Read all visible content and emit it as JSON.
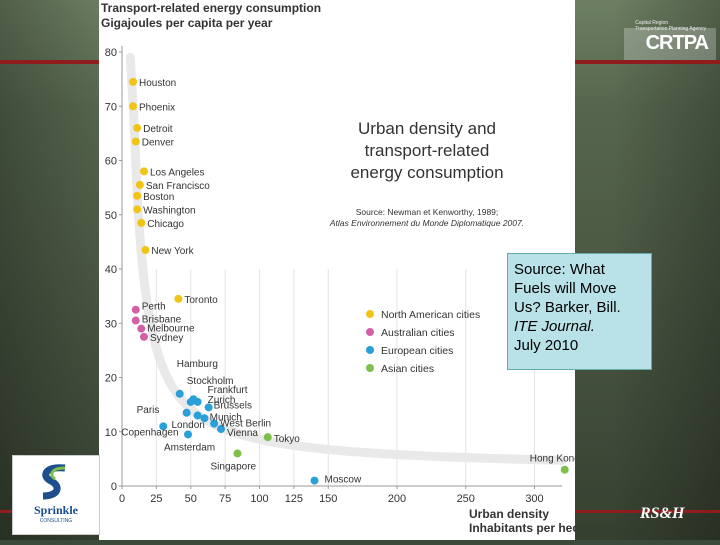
{
  "source_box": {
    "lines": [
      "Source: What",
      "Fuels will Move",
      "Us? Barker, Bill.",
      "ITE Journal.",
      "July 2010"
    ]
  },
  "logos": {
    "left_word": "Sprinkle",
    "left_sub": "CONSULTING",
    "right_word": "CRTPA",
    "bottom_right": "RS&H"
  },
  "chart_data": {
    "type": "scatter",
    "title": "Urban density and transport-related energy consumption",
    "title_lines": [
      "Urban density and",
      "transport-related",
      "energy consumption"
    ],
    "source_lines": [
      "Source: Newman et Kenworthy, 1989;",
      "Atlas Environnement du Monde Diplomatique 2007."
    ],
    "ylabel_lines": [
      "Transport-related energy consumption",
      "Gigajoules per capita per year"
    ],
    "xlabel_lines": [
      "Urban density",
      "Inhabitants per hectare"
    ],
    "xlim": [
      0,
      320
    ],
    "ylim": [
      0,
      80
    ],
    "x_ticks": [
      0,
      25,
      50,
      75,
      100,
      125,
      150,
      200,
      250,
      300
    ],
    "y_ticks": [
      0,
      10,
      20,
      30,
      40,
      50,
      60,
      70,
      80
    ],
    "grid": true,
    "legend_position": "right",
    "legend": [
      {
        "name": "North American cities",
        "color": "#f2c417"
      },
      {
        "name": "Australian cities",
        "color": "#d160a6"
      },
      {
        "name": "European cities",
        "color": "#2aa0d8"
      },
      {
        "name": "Asian cities",
        "color": "#7cc04a"
      }
    ],
    "series": [
      {
        "name": "North American cities",
        "color": "#f2c417",
        "points": [
          {
            "label": "Houston",
            "x": 8,
            "y": 74.5
          },
          {
            "label": "Phoenix",
            "x": 8,
            "y": 70
          },
          {
            "label": "Detroit",
            "x": 11,
            "y": 66
          },
          {
            "label": "Denver",
            "x": 10,
            "y": 63.5
          },
          {
            "label": "Los Angeles",
            "x": 16,
            "y": 58
          },
          {
            "label": "San Francisco",
            "x": 13,
            "y": 55.5
          },
          {
            "label": "Boston",
            "x": 11,
            "y": 53.5
          },
          {
            "label": "Washington",
            "x": 11,
            "y": 51
          },
          {
            "label": "Chicago",
            "x": 14,
            "y": 48.5
          },
          {
            "label": "New York",
            "x": 17,
            "y": 43.5
          },
          {
            "label": "Toronto",
            "x": 41,
            "y": 34.5
          }
        ]
      },
      {
        "name": "Australian cities",
        "color": "#d160a6",
        "points": [
          {
            "label": "Perth",
            "x": 10,
            "y": 32.5
          },
          {
            "label": "Brisbane",
            "x": 10,
            "y": 30.5
          },
          {
            "label": "Melbourne",
            "x": 14,
            "y": 29
          },
          {
            "label": "Sydney",
            "x": 16,
            "y": 27.5
          }
        ]
      },
      {
        "name": "European cities",
        "color": "#2aa0d8",
        "points": [
          {
            "label": "Hamburg",
            "x": 42,
            "y": 17
          },
          {
            "label": "Stockholm",
            "x": 50,
            "y": 15.5
          },
          {
            "label": "Frankfurt",
            "x": 52,
            "y": 16
          },
          {
            "label": "Zurich",
            "x": 55,
            "y": 15.5
          },
          {
            "label": "Brussels",
            "x": 63,
            "y": 14.5
          },
          {
            "label": "Paris",
            "x": 47,
            "y": 13.5
          },
          {
            "label": "Munich",
            "x": 55,
            "y": 13
          },
          {
            "label": "London",
            "x": 60,
            "y": 12.5
          },
          {
            "label": "West Berlin",
            "x": 67,
            "y": 11.5
          },
          {
            "label": "Vienna",
            "x": 72,
            "y": 10.5
          },
          {
            "label": "Copenhagen",
            "x": 30,
            "y": 11
          },
          {
            "label": "Amsterdam",
            "x": 48,
            "y": 9.5
          },
          {
            "label": "Moscow",
            "x": 140,
            "y": 1
          }
        ]
      },
      {
        "name": "Asian cities",
        "color": "#7cc04a",
        "points": [
          {
            "label": "Tokyo",
            "x": 106,
            "y": 9
          },
          {
            "label": "Singapore",
            "x": 84,
            "y": 6
          },
          {
            "label": "Hong Kong",
            "x": 322,
            "y": 3
          }
        ]
      }
    ]
  }
}
